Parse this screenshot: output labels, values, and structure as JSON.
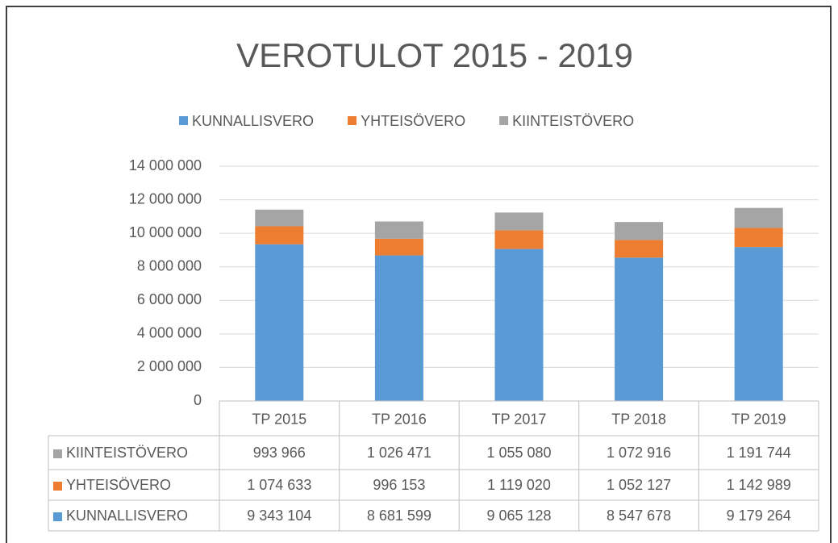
{
  "chart_data": {
    "type": "stacked_bar",
    "title": "VEROTULOT 2015 - 2019",
    "categories": [
      "TP 2015",
      "TP 2016",
      "TP 2017",
      "TP 2018",
      "TP 2019"
    ],
    "series": [
      {
        "name": "KUNNALLISVERO",
        "color": "#5b9bd5",
        "values": [
          9343104,
          8681599,
          9065128,
          8547678,
          9179264
        ],
        "value_labels": [
          "9 343 104",
          "8 681 599",
          "9 065 128",
          "8 547 678",
          "9 179 264"
        ]
      },
      {
        "name": "YHTEISÖVERO",
        "color": "#ed7d31",
        "values": [
          1074633,
          996153,
          1119020,
          1052127,
          1142989
        ],
        "value_labels": [
          "1 074 633",
          "996 153",
          "1 119 020",
          "1 052 127",
          "1 142 989"
        ]
      },
      {
        "name": "KIINTEISTÖVERO",
        "color": "#a5a5a5",
        "values": [
          993966,
          1026471,
          1055080,
          1072916,
          1191744
        ],
        "value_labels": [
          "993 966",
          "1 026 471",
          "1 055 080",
          "1 072 916",
          "1 191 744"
        ]
      }
    ],
    "ylim": [
      0,
      14000000
    ],
    "yticks": [
      0,
      {
        "value": 2000000,
        "label": "2 000 000"
      },
      {
        "value": 4000000,
        "label": "4 000 000"
      },
      {
        "value": 6000000,
        "label": "6 000 000"
      },
      {
        "value": 8000000,
        "label": "8 000 000"
      },
      {
        "value": 10000000,
        "label": "10 000 000"
      },
      {
        "value": 12000000,
        "label": "12 000 000"
      },
      {
        "value": 14000000,
        "label": "14 000 000"
      }
    ],
    "grid": true,
    "legend": "top"
  }
}
